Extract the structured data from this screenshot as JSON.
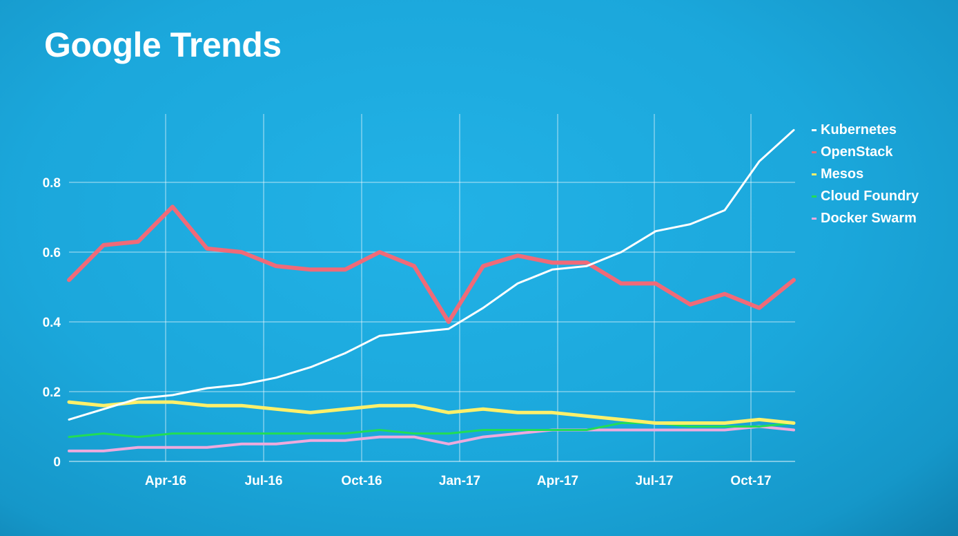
{
  "title": "Google Trends",
  "chart_data": {
    "type": "line",
    "x": [
      "2016-02",
      "2016-03",
      "2016-04",
      "2016-05",
      "2016-06",
      "2016-07",
      "2016-08",
      "2016-09",
      "2016-10",
      "2016-11",
      "2016-12",
      "2017-01",
      "2017-02",
      "2017-03",
      "2017-04",
      "2017-05",
      "2017-06",
      "2017-07",
      "2017-08",
      "2017-09",
      "2017-10",
      "2017-11"
    ],
    "x_ticks": [
      "Apr-16",
      "Jul-16",
      "Oct-16",
      "Jan-17",
      "Apr-17",
      "Jul-17",
      "Oct-17"
    ],
    "y_ticks": [
      "0",
      "0.2",
      "0.4",
      "0.6",
      "0.8"
    ],
    "ylim": [
      0,
      0.95
    ],
    "grid": true,
    "legend_position": "right",
    "series": [
      {
        "name": "Kubernetes",
        "color": "#ffffff",
        "values": [
          0.12,
          0.15,
          0.18,
          0.19,
          0.21,
          0.22,
          0.24,
          0.27,
          0.31,
          0.36,
          0.37,
          0.38,
          0.44,
          0.51,
          0.55,
          0.56,
          0.6,
          0.66,
          0.68,
          0.72,
          0.86,
          0.95
        ]
      },
      {
        "name": "OpenStack",
        "color": "#f06a78",
        "values": [
          0.52,
          0.62,
          0.63,
          0.73,
          0.61,
          0.6,
          0.56,
          0.55,
          0.55,
          0.6,
          0.56,
          0.4,
          0.56,
          0.59,
          0.57,
          0.57,
          0.51,
          0.51,
          0.45,
          0.48,
          0.44,
          0.52
        ]
      },
      {
        "name": "Mesos",
        "color": "#fff06a",
        "values": [
          0.17,
          0.16,
          0.17,
          0.17,
          0.16,
          0.16,
          0.15,
          0.14,
          0.15,
          0.16,
          0.16,
          0.14,
          0.15,
          0.14,
          0.14,
          0.13,
          0.12,
          0.11,
          0.11,
          0.11,
          0.12,
          0.11
        ]
      },
      {
        "name": "Cloud Foundry",
        "color": "#22dd55",
        "values": [
          0.07,
          0.08,
          0.07,
          0.08,
          0.08,
          0.08,
          0.08,
          0.08,
          0.08,
          0.09,
          0.08,
          0.08,
          0.09,
          0.09,
          0.09,
          0.09,
          0.11,
          0.11,
          0.1,
          0.1,
          0.1,
          0.11
        ]
      },
      {
        "name": "Docker Swarm",
        "color": "#eeaadd",
        "values": [
          0.03,
          0.03,
          0.04,
          0.04,
          0.04,
          0.05,
          0.05,
          0.06,
          0.06,
          0.07,
          0.07,
          0.05,
          0.07,
          0.08,
          0.09,
          0.09,
          0.09,
          0.09,
          0.09,
          0.09,
          0.1,
          0.09
        ]
      }
    ]
  }
}
